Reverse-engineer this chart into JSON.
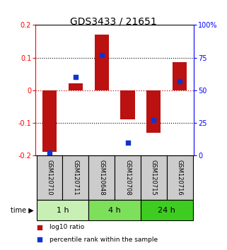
{
  "title": "GDS3433 / 21651",
  "samples": [
    "GSM120710",
    "GSM120711",
    "GSM120648",
    "GSM120708",
    "GSM120715",
    "GSM120716"
  ],
  "log10_ratio": [
    -0.19,
    0.02,
    0.17,
    -0.09,
    -0.13,
    0.085
  ],
  "percentile_rank": [
    2.0,
    60.0,
    77.0,
    10.0,
    27.0,
    57.0
  ],
  "ylim_left": [
    -0.2,
    0.2
  ],
  "ylim_right": [
    0,
    100
  ],
  "yticks_left": [
    -0.2,
    -0.1,
    0.0,
    0.1,
    0.2
  ],
  "yticks_right": [
    0,
    25,
    50,
    75,
    100
  ],
  "time_groups": [
    {
      "label": "1 h",
      "indices": [
        0,
        1
      ],
      "color": "#c8f0b4"
    },
    {
      "label": "4 h",
      "indices": [
        2,
        3
      ],
      "color": "#7de05a"
    },
    {
      "label": "24 h",
      "indices": [
        4,
        5
      ],
      "color": "#3ecc20"
    }
  ],
  "bar_color": "#bb1111",
  "square_color": "#1133cc",
  "bar_width": 0.55,
  "square_size": 25,
  "hline_color": "#cc1111",
  "background_color": "#ffffff",
  "sample_box_color": "#cccccc",
  "title_color": "#000000",
  "title_fontsize": 10,
  "tick_fontsize": 7,
  "sample_fontsize": 6,
  "time_fontsize": 8,
  "legend_fontsize": 6.5
}
